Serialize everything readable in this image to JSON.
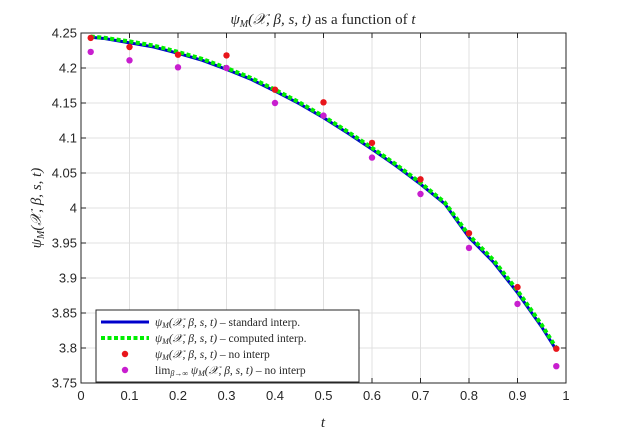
{
  "chart_data": {
    "type": "line",
    "title": "ψ_M(𝒳, β, s, t) as a function of t",
    "title_parts": {
      "math": "ψ",
      "sub": "M",
      "args": "(𝒳, β, s, t)",
      "rest": " as a function of ",
      "var": "t"
    },
    "xlabel": "t",
    "ylabel": "ψ_M(𝒳, β, s, t)",
    "ylabel_parts": {
      "math": "ψ",
      "sub": "M",
      "args": "(𝒳, β, s, t)"
    },
    "xlim": [
      0,
      1
    ],
    "ylim": [
      3.75,
      4.25
    ],
    "x_ticks": [
      0,
      0.1,
      0.2,
      0.3,
      0.4,
      0.5,
      0.6,
      0.7,
      0.8,
      0.9,
      1
    ],
    "x_tick_labels": [
      "0",
      "0.1",
      "0.2",
      "0.3",
      "0.4",
      "0.5",
      "0.6",
      "0.7",
      "0.8",
      "0.9",
      "1"
    ],
    "y_ticks": [
      3.75,
      3.8,
      3.85,
      3.9,
      3.95,
      4,
      4.05,
      4.1,
      4.15,
      4.2,
      4.25
    ],
    "y_tick_labels": [
      "3.75",
      "3.8",
      "3.85",
      "3.9",
      "3.95",
      "4",
      "4.05",
      "4.1",
      "4.15",
      "4.2",
      "4.25"
    ],
    "grid": true,
    "legend_position": "bottom-left",
    "series": [
      {
        "name": "ψ_M(𝒳, β, s, t) – standard interp.",
        "style": "line",
        "color": "#0000cc",
        "x": [
          0.02,
          0.05,
          0.1,
          0.15,
          0.2,
          0.25,
          0.3,
          0.35,
          0.4,
          0.45,
          0.5,
          0.55,
          0.6,
          0.65,
          0.7,
          0.75,
          0.8,
          0.85,
          0.9,
          0.95,
          0.98
        ],
        "values": [
          4.244,
          4.242,
          4.236,
          4.23,
          4.221,
          4.211,
          4.198,
          4.184,
          4.167,
          4.149,
          4.129,
          4.107,
          4.084,
          4.06,
          4.034,
          4.006,
          3.958,
          3.923,
          3.879,
          3.83,
          3.797
        ]
      },
      {
        "name": "ψ_M(𝒳, β, s, t) – computed interp.",
        "style": "dotted",
        "color": "#00ee00",
        "x": [
          0.02,
          0.05,
          0.1,
          0.15,
          0.2,
          0.25,
          0.3,
          0.35,
          0.4,
          0.45,
          0.5,
          0.55,
          0.6,
          0.65,
          0.7,
          0.75,
          0.8,
          0.85,
          0.9,
          0.95,
          0.98
        ],
        "values": [
          4.245,
          4.243,
          4.238,
          4.232,
          4.223,
          4.213,
          4.2,
          4.186,
          4.169,
          4.151,
          4.131,
          4.109,
          4.086,
          4.062,
          4.036,
          4.008,
          3.961,
          3.926,
          3.882,
          3.833,
          3.8
        ]
      },
      {
        "name": "ψ_M(𝒳, β, s, t) – no interp",
        "style": "marker",
        "color": "#e8151b",
        "x": [
          0.02,
          0.1,
          0.2,
          0.3,
          0.4,
          0.5,
          0.6,
          0.7,
          0.8,
          0.9,
          0.98
        ],
        "values": [
          4.243,
          4.23,
          4.219,
          4.218,
          4.169,
          4.151,
          4.093,
          4.041,
          3.964,
          3.887,
          3.799
        ]
      },
      {
        "name": "lim_{β→∞} ψ_M(𝒳, β, s, t) – no interp",
        "style": "marker",
        "color": "#c81ecf",
        "x": [
          0.02,
          0.1,
          0.2,
          0.3,
          0.4,
          0.5,
          0.6,
          0.7,
          0.8,
          0.9,
          0.98
        ],
        "values": [
          4.223,
          4.211,
          4.201,
          4.2,
          4.15,
          4.132,
          4.072,
          4.02,
          3.943,
          3.863,
          3.774
        ]
      }
    ],
    "legend": [
      {
        "prefix": "",
        "main": "ψ",
        "sub": "M",
        "args": "(𝒳, β, s, t)",
        "suffix": " – standard interp."
      },
      {
        "prefix": "",
        "main": "ψ",
        "sub": "M",
        "args": "(𝒳, β, s, t)",
        "suffix": " – computed interp."
      },
      {
        "prefix": "",
        "main": "ψ",
        "sub": "M",
        "args": "(𝒳, β, s, t)",
        "suffix": " – no interp"
      },
      {
        "prefix": "lim",
        "prefix_sub": "β→∞",
        "main": " ψ",
        "sub": "M",
        "args": "(𝒳, β, s, t)",
        "suffix": " – no interp"
      }
    ]
  }
}
